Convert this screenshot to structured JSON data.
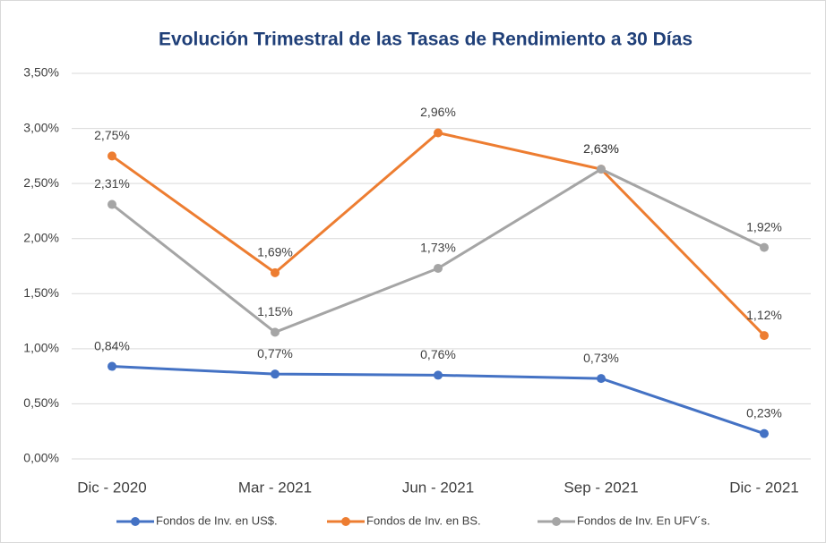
{
  "chart_data": {
    "type": "line",
    "title": "Evolución Trimestral de las Tasas de Rendimiento a 30 Días",
    "categories": [
      "Dic - 2020",
      "Mar - 2021",
      "Jun - 2021",
      "Sep - 2021",
      "Dic - 2021"
    ],
    "series": [
      {
        "name": "Fondos de Inv. en US$.",
        "color": "#4472c4",
        "values": [
          0.84,
          0.77,
          0.76,
          0.73,
          0.23
        ],
        "value_labels": [
          "0,84%",
          "0,77%",
          "0,76%",
          "0,73%",
          "0,23%"
        ]
      },
      {
        "name": "Fondos de Inv. en BS.",
        "color": "#ed7d31",
        "values": [
          2.75,
          1.69,
          2.96,
          2.63,
          1.12
        ],
        "value_labels": [
          "2,75%",
          "1,69%",
          "2,96%",
          "2,63%",
          "1,12%"
        ]
      },
      {
        "name": "Fondos de Inv. En UFV´s.",
        "color": "#a5a5a5",
        "values": [
          2.31,
          1.15,
          1.73,
          2.63,
          1.92
        ],
        "value_labels": [
          "2,31%",
          "1,15%",
          "1,73%",
          "2,63%",
          "1,92%"
        ]
      }
    ],
    "ylim": [
      0,
      3.5
    ],
    "yticks": [
      {
        "value": 0,
        "label": "0,00%"
      },
      {
        "value": 0.5,
        "label": "0,50%"
      },
      {
        "value": 1,
        "label": "1,00%"
      },
      {
        "value": 1.5,
        "label": "1,50%"
      },
      {
        "value": 2,
        "label": "2,00%"
      },
      {
        "value": 2.5,
        "label": "2,50%"
      },
      {
        "value": 3,
        "label": "3,00%"
      },
      {
        "value": 3.5,
        "label": "3,50%"
      }
    ],
    "grid": true,
    "legend": "bottom"
  }
}
